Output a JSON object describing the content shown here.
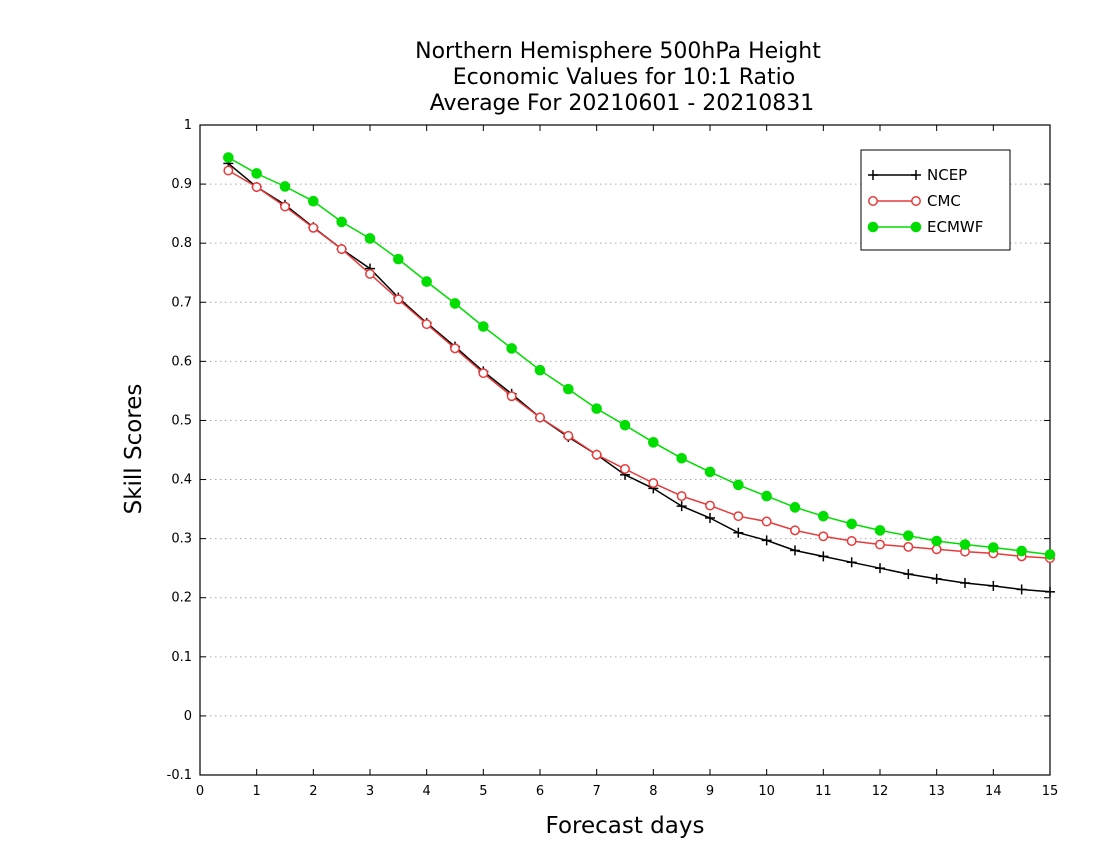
{
  "chart_data": {
    "type": "line",
    "title_lines": [
      "Northern Hemisphere 500hPa Height",
      "Economic Values for 10:1 Ratio",
      "Average For 20210601 - 20210831"
    ],
    "xlabel": "Forecast days",
    "ylabel": "Skill Scores",
    "xlim": [
      0,
      15
    ],
    "ylim": [
      -0.1,
      1
    ],
    "xticks": [
      "0",
      "1",
      "2",
      "3",
      "4",
      "5",
      "6",
      "7",
      "8",
      "9",
      "10",
      "11",
      "12",
      "13",
      "14",
      "15"
    ],
    "yticks": [
      "-0.1",
      "0",
      "0.1",
      "0.2",
      "0.3",
      "0.4",
      "0.5",
      "0.6",
      "0.7",
      "0.8",
      "0.9",
      "1"
    ],
    "grid": true,
    "legend_position": "top-right",
    "x": [
      0.5,
      1,
      1.5,
      2,
      2.5,
      3,
      3.5,
      4,
      4.5,
      5,
      5.5,
      6,
      6.5,
      7,
      7.5,
      8,
      8.5,
      9,
      9.5,
      10,
      10.5,
      11,
      11.5,
      12,
      12.5,
      13,
      13.5,
      14,
      14.5,
      15
    ],
    "series": [
      {
        "name": "NCEP",
        "color": "#000000",
        "marker": "plus",
        "values": [
          0.935,
          0.895,
          0.865,
          0.827,
          0.79,
          0.757,
          0.708,
          0.665,
          0.625,
          0.583,
          0.545,
          0.505,
          0.472,
          0.442,
          0.408,
          0.385,
          0.355,
          0.335,
          0.31,
          0.297,
          0.28,
          0.27,
          0.26,
          0.25,
          0.24,
          0.232,
          0.225,
          0.22,
          0.214,
          0.21
        ]
      },
      {
        "name": "CMC",
        "color": "#e83a3a",
        "marker": "open-circle",
        "values": [
          0.923,
          0.895,
          0.862,
          0.826,
          0.79,
          0.748,
          0.705,
          0.663,
          0.622,
          0.58,
          0.541,
          0.505,
          0.474,
          0.442,
          0.418,
          0.394,
          0.372,
          0.356,
          0.338,
          0.329,
          0.314,
          0.304,
          0.296,
          0.29,
          0.286,
          0.282,
          0.278,
          0.275,
          0.27,
          0.267
        ]
      },
      {
        "name": "ECMWF",
        "color": "#00dd00",
        "marker": "filled-circle",
        "values": [
          0.945,
          0.918,
          0.896,
          0.871,
          0.836,
          0.808,
          0.773,
          0.735,
          0.698,
          0.659,
          0.622,
          0.585,
          0.553,
          0.52,
          0.492,
          0.463,
          0.436,
          0.413,
          0.391,
          0.372,
          0.353,
          0.338,
          0.325,
          0.314,
          0.305,
          0.296,
          0.29,
          0.285,
          0.279,
          0.273
        ]
      }
    ]
  }
}
